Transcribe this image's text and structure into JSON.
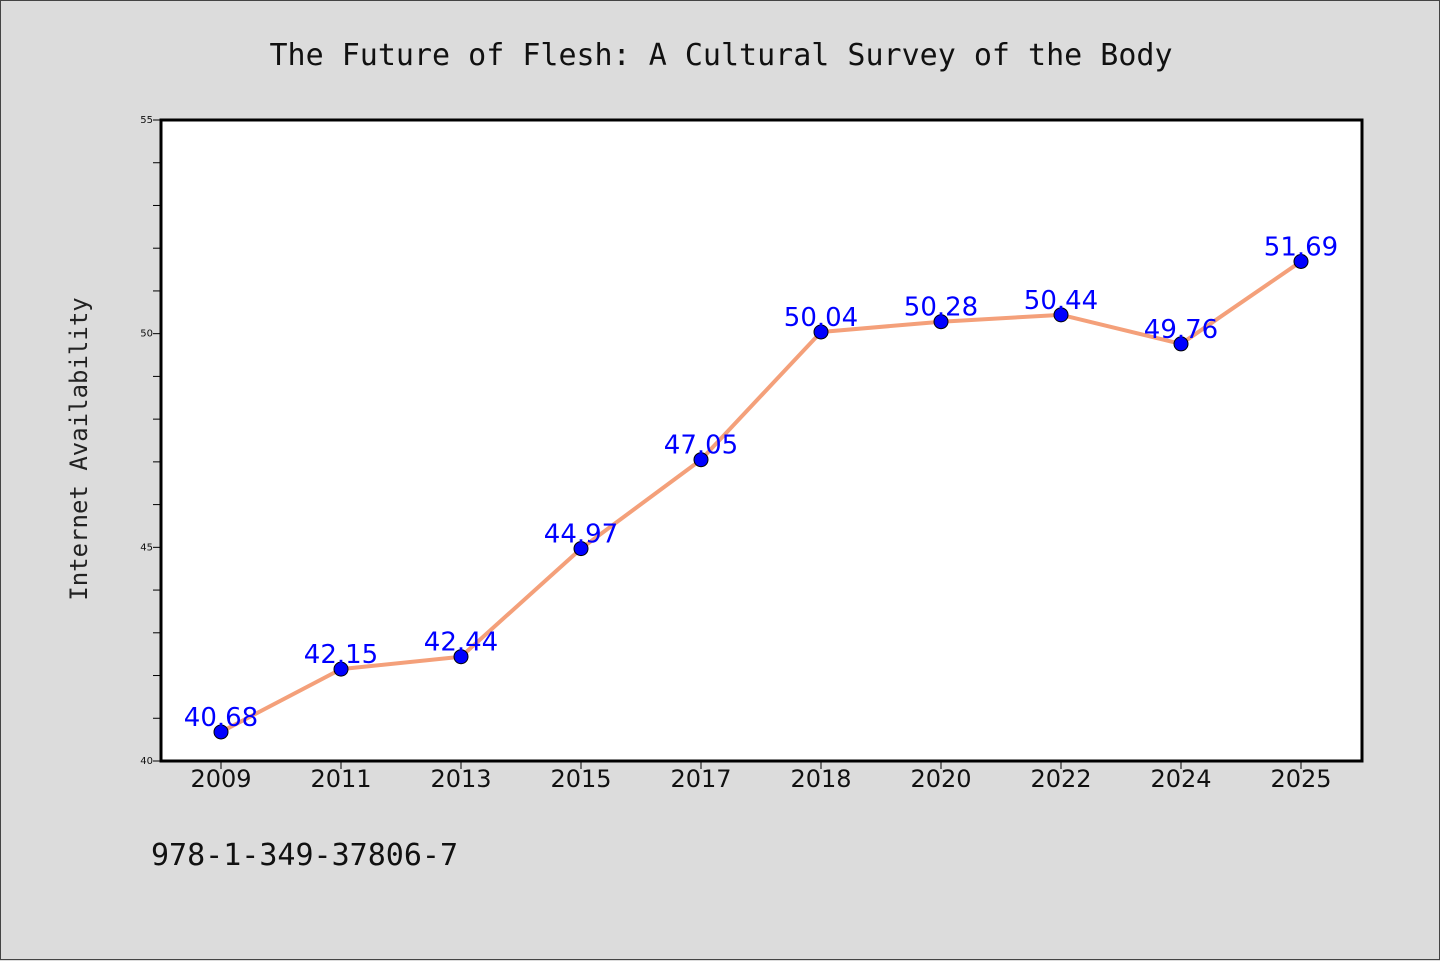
{
  "chart_data": {
    "type": "line",
    "title": "The Future of Flesh: A Cultural Survey of the Body",
    "xlabel": "",
    "ylabel": "Internet Availability",
    "categories": [
      "2009",
      "2011",
      "2013",
      "2015",
      "2017",
      "2018",
      "2020",
      "2022",
      "2024",
      "2025"
    ],
    "series": [
      {
        "values": [
          40.68,
          42.15,
          42.44,
          44.97,
          47.05,
          50.04,
          50.28,
          50.44,
          49.76,
          51.69
        ],
        "labels": [
          "40.68",
          "42.15",
          "42.44",
          "44.97",
          "47.05",
          "50.04",
          "50.28",
          "50.44",
          "49.76",
          "51.69"
        ],
        "line_color": "#f4a07a",
        "marker_color": "#0000ff"
      }
    ],
    "ylim": [
      40,
      55
    ],
    "yticks": [
      "40",
      "45",
      "50",
      "55"
    ],
    "grid": false,
    "background": "#dcdcdc",
    "plot_background": "#ffffff"
  },
  "footer": {
    "isbn": "978-1-349-37806-7"
  }
}
